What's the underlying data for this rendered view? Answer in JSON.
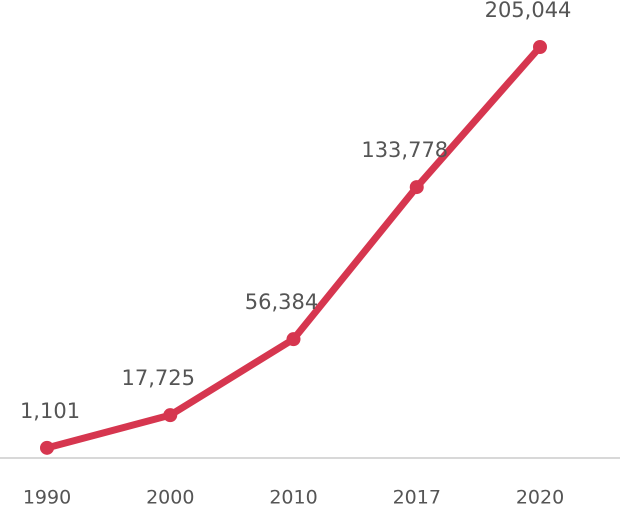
{
  "chart_data": {
    "type": "line",
    "categories": [
      "1990",
      "2000",
      "2010",
      "2017",
      "2020"
    ],
    "values": [
      1101,
      17725,
      56384,
      133778,
      205044
    ],
    "value_labels": [
      "1,101",
      "17,725",
      "56,384",
      "133,778",
      "205,044"
    ],
    "color": "#d6364f"
  }
}
